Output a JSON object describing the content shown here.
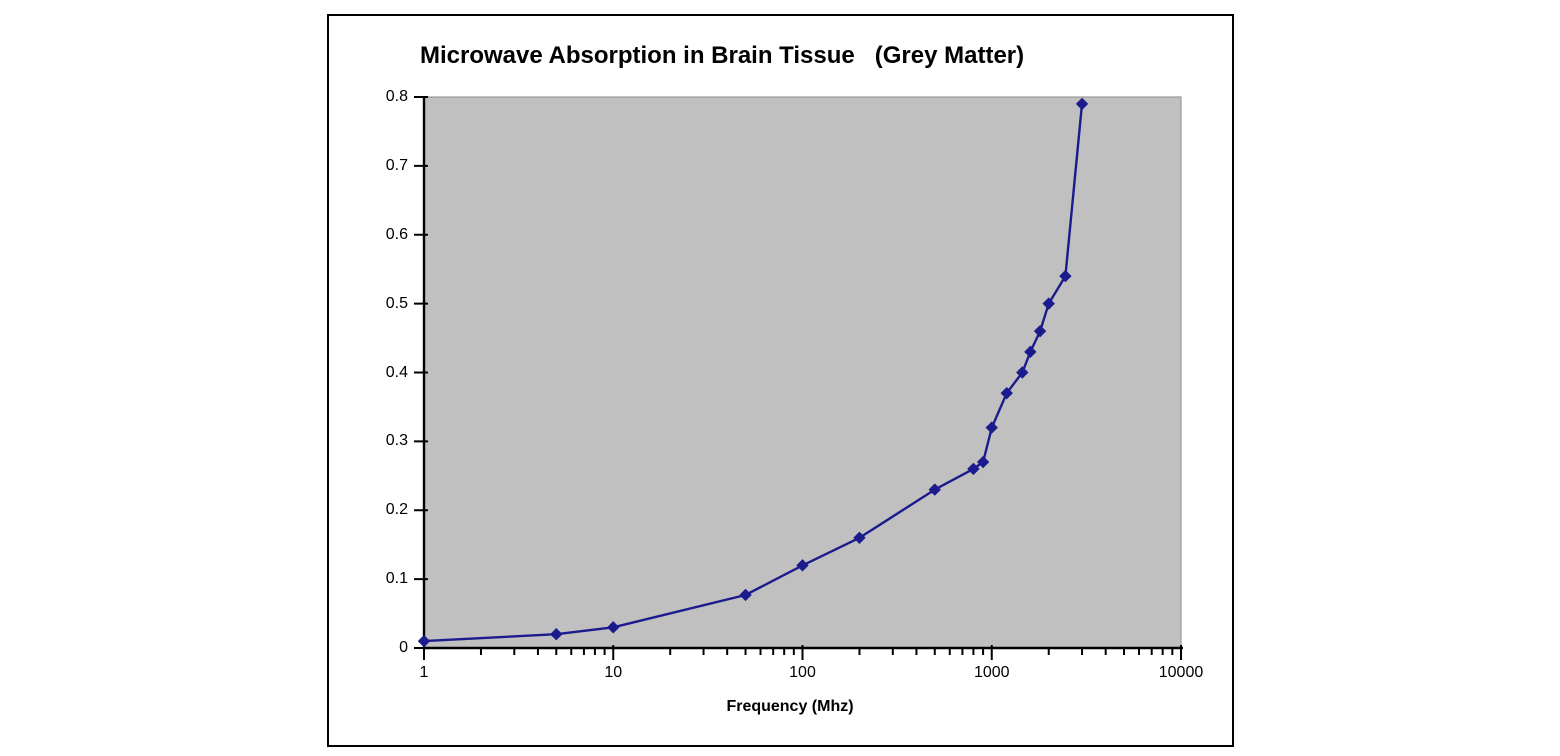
{
  "chart": {
    "colors": {
      "line": "#1b1b8e",
      "marker": "#1b1b8e",
      "plot_background": "#c0c0c0",
      "plot_edge": "#9a9a9a",
      "axis": "#000000",
      "text": "#000000",
      "frame_border": "#000000",
      "page_background": "#ffffff"
    },
    "marker_shape": "diamond"
  },
  "chart_data": {
    "type": "line",
    "title": "Microwave Absorption in Brain Tissue   (Grey Matter)",
    "xlabel": "Frequency (Mhz)",
    "ylabel": "",
    "x_scale": "log",
    "xlim": [
      1,
      10000
    ],
    "ylim": [
      0,
      0.8
    ],
    "grid": false,
    "legend": false,
    "x": [
      1,
      5,
      10,
      50,
      100,
      200,
      500,
      800,
      900,
      1000,
      1200,
      1450,
      1600,
      1800,
      2000,
      2450,
      3000
    ],
    "values": [
      0.01,
      0.02,
      0.03,
      0.077,
      0.12,
      0.16,
      0.23,
      0.26,
      0.27,
      0.32,
      0.37,
      0.4,
      0.43,
      0.46,
      0.5,
      0.54,
      0.79
    ],
    "x_tick_labels": [
      "1",
      "10",
      "100",
      "1000",
      "10000"
    ],
    "x_tick_values": [
      1,
      10,
      100,
      1000,
      10000
    ],
    "x_minor_tick_multipliers": [
      2,
      3,
      4,
      5,
      6,
      7,
      8,
      9
    ],
    "y_tick_labels": [
      "0",
      "0.1",
      "0.2",
      "0.3",
      "0.4",
      "0.5",
      "0.6",
      "0.7",
      "0.8"
    ],
    "y_tick_values": [
      0,
      0.1,
      0.2,
      0.3,
      0.4,
      0.5,
      0.6,
      0.7,
      0.8
    ]
  }
}
